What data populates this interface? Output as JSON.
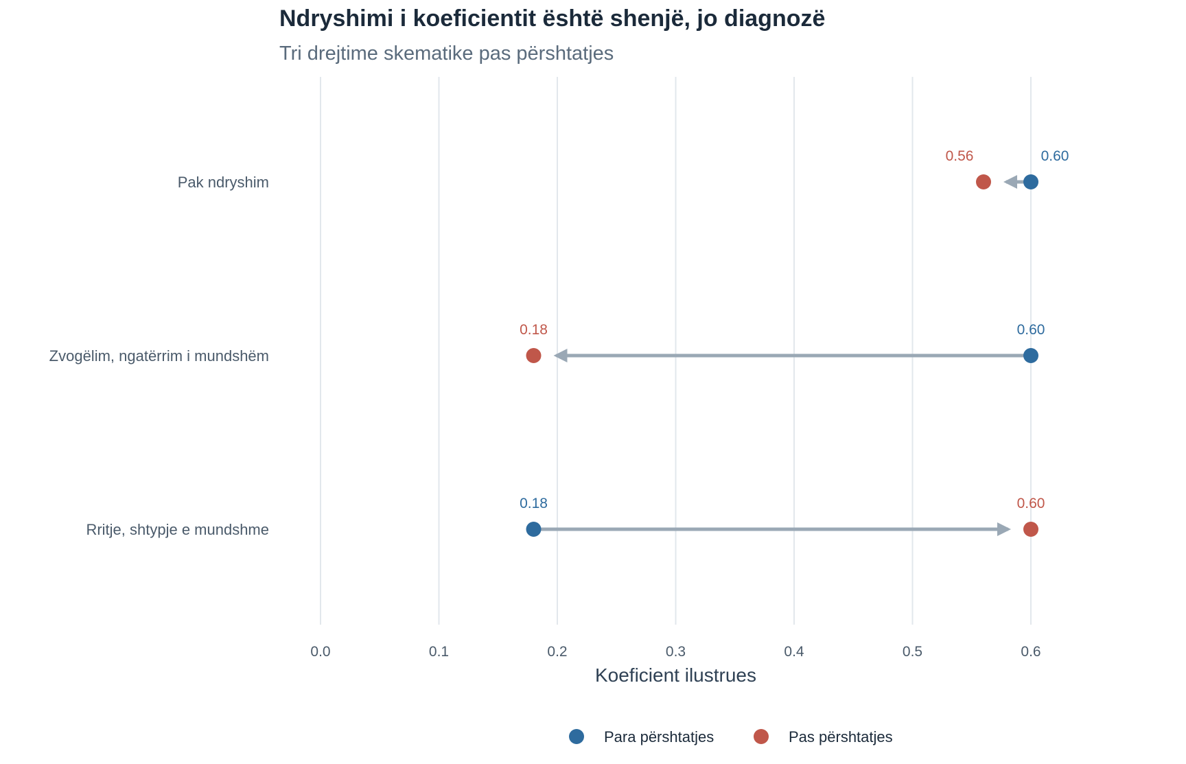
{
  "title": "Ndryshimi i koeficientit është shenjë, jo diagnozë",
  "subtitle": "Tri drejtime skematike pas përshtatjes",
  "colors": {
    "before": "#2e6b9e",
    "after": "#c0574a",
    "arrow": "#9aa8b5",
    "grid": "#e2e7ec"
  },
  "chart_data": {
    "type": "dumbbell",
    "xlabel": "Koeficient ilustrues",
    "xlim": [
      0.0,
      0.6
    ],
    "xticks": [
      "0.0",
      "0.1",
      "0.2",
      "0.3",
      "0.4",
      "0.5",
      "0.6"
    ],
    "xtick_values": [
      0.0,
      0.1,
      0.2,
      0.3,
      0.4,
      0.5,
      0.6
    ],
    "grid": "vertical",
    "legend_position": "bottom",
    "categories": [
      "Pak ndryshim",
      "Zvogëlim, ngatërrim i mundshëm",
      "Rritje, shtypje e mundshme"
    ],
    "series": [
      {
        "name": "Para përshtatjes",
        "values": [
          0.6,
          0.6,
          0.18
        ],
        "labels": [
          "0.60",
          "0.60",
          "0.18"
        ]
      },
      {
        "name": "Pas përshtatjes",
        "values": [
          0.56,
          0.18,
          0.6
        ],
        "labels": [
          "0.56",
          "0.18",
          "0.60"
        ]
      }
    ]
  }
}
